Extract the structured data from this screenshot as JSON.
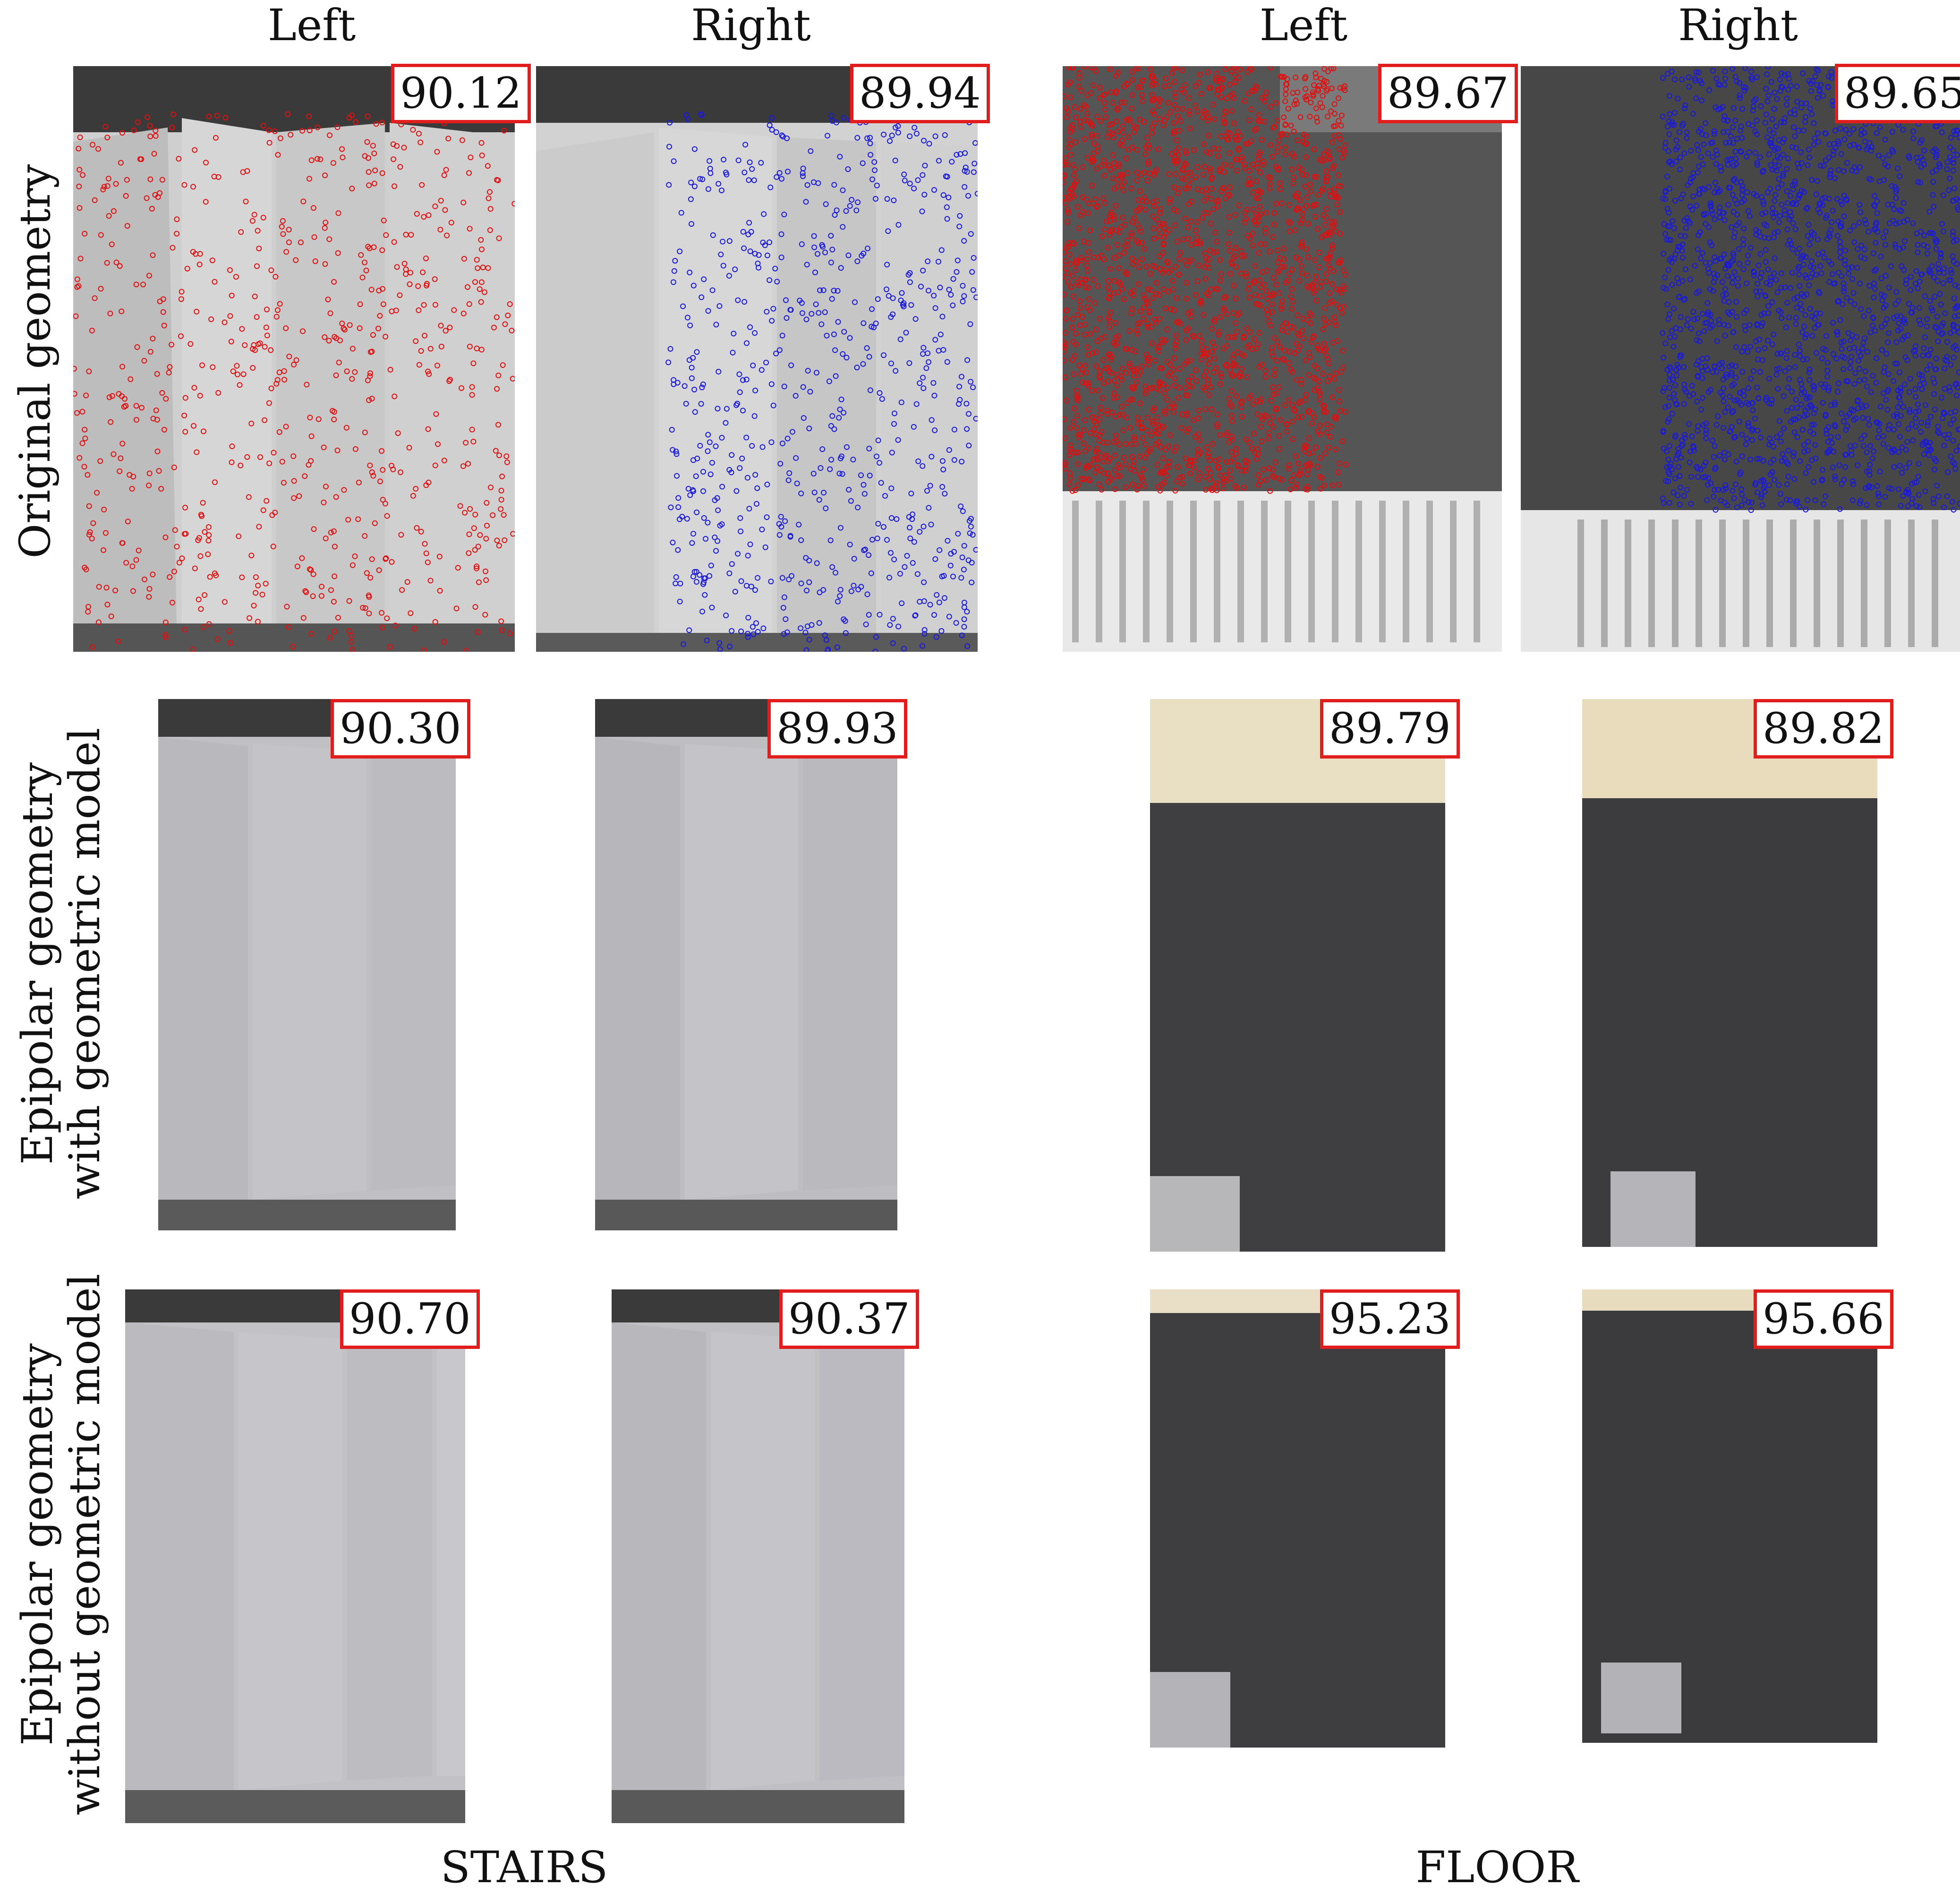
{
  "headers": {
    "left": "Left",
    "right": "Right"
  },
  "groups": {
    "stairs": "STAIRS",
    "floor": "FLOOR"
  },
  "rows": [
    {
      "line1": "Original geometry",
      "line2": ""
    },
    {
      "line1": "Epipolar geometry",
      "line2": "with geometric model"
    },
    {
      "line1": "Epipolar geometry",
      "line2": "without geometric model"
    }
  ],
  "panels": [
    {
      "scene": "stairs",
      "view": "left",
      "row": 0,
      "score": "90.12",
      "keypoints": "red"
    },
    {
      "scene": "stairs",
      "view": "right",
      "row": 0,
      "score": "89.94",
      "keypoints": "blue"
    },
    {
      "scene": "floor",
      "view": "left",
      "row": 0,
      "score": "89.67",
      "keypoints": "red"
    },
    {
      "scene": "floor",
      "view": "right",
      "row": 0,
      "score": "89.65",
      "keypoints": "blue"
    },
    {
      "scene": "stairs",
      "view": "left",
      "row": 1,
      "score": "90.30"
    },
    {
      "scene": "stairs",
      "view": "right",
      "row": 1,
      "score": "89.93"
    },
    {
      "scene": "floor",
      "view": "left",
      "row": 1,
      "score": "89.79"
    },
    {
      "scene": "floor",
      "view": "right",
      "row": 1,
      "score": "89.82"
    },
    {
      "scene": "stairs",
      "view": "left",
      "row": 2,
      "score": "90.70"
    },
    {
      "scene": "stairs",
      "view": "right",
      "row": 2,
      "score": "90.37"
    },
    {
      "scene": "floor",
      "view": "left",
      "row": 2,
      "score": "95.23"
    },
    {
      "scene": "floor",
      "view": "right",
      "row": 2,
      "score": "95.66"
    }
  ],
  "colors": {
    "score_border": "#e11d1d",
    "keypoint_left": "#e01010",
    "keypoint_right": "#1a1ad8"
  }
}
